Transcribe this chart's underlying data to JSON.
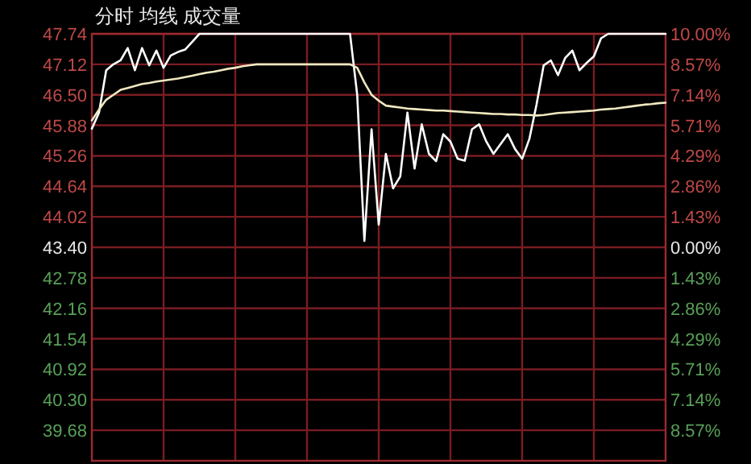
{
  "chart_data": {
    "type": "line",
    "title": "分时 均线 成交量",
    "categories": [
      null,
      null,
      null,
      null,
      null,
      null,
      null,
      null,
      null,
      null,
      null,
      null,
      null,
      null,
      null,
      null,
      null,
      null,
      null,
      null,
      null,
      null,
      null,
      null,
      null,
      null,
      null,
      null,
      null,
      null,
      null,
      null,
      null,
      null,
      null,
      null,
      null,
      null,
      null,
      null,
      null,
      null,
      null,
      null,
      null,
      null,
      null,
      null,
      null,
      null,
      null,
      null,
      null,
      null,
      null,
      null,
      null,
      null,
      null,
      null,
      null,
      null,
      null,
      null,
      null,
      null,
      null,
      null,
      null,
      null,
      null,
      null,
      null,
      null,
      null,
      null,
      null,
      null,
      null,
      null,
      null
    ],
    "grid": true,
    "ylim": [
      39.06,
      47.74
    ],
    "yticks": [
      47.74,
      47.12,
      {
        "value": 46.5,
        "label": "46.50"
      },
      45.88,
      45.26,
      44.64,
      44.02,
      {
        "value": 43.4,
        "label": "43.40"
      },
      42.78,
      42.16,
      41.54,
      40.92,
      {
        "value": 40.3,
        "label": "40.30"
      },
      39.68
    ],
    "y2lim": [
      -10,
      10
    ],
    "y2ticks": [
      {
        "value": 10,
        "label": "10.00%"
      },
      {
        "value": 8.57,
        "label": "8.57%"
      },
      {
        "value": 7.14,
        "label": "7.14%"
      },
      {
        "value": 5.71,
        "label": "5.71%"
      },
      {
        "value": 4.29,
        "label": "4.29%"
      },
      {
        "value": 2.86,
        "label": "2.86%"
      },
      {
        "value": 1.43,
        "label": "1.43%"
      },
      {
        "value": 0,
        "label": "0.00%"
      },
      {
        "value": -1.43,
        "label": "1.43%"
      },
      {
        "value": -2.86,
        "label": "2.86%"
      },
      {
        "value": -4.29,
        "label": "4.29%"
      },
      {
        "value": -5.71,
        "label": "5.71%"
      },
      {
        "value": -7.14,
        "label": "7.14%"
      },
      {
        "value": -8.57,
        "label": "8.57%"
      }
    ],
    "series": [
      {
        "color": "#ffffff",
        "values": [
          45.81,
          46.14,
          47.0,
          47.12,
          47.2,
          47.45,
          47.0,
          47.45,
          47.1,
          47.4,
          47.05,
          47.3,
          47.37,
          47.42,
          47.58,
          47.74,
          47.74,
          47.74,
          47.74,
          47.74,
          47.74,
          47.74,
          47.74,
          47.74,
          47.74,
          47.74,
          47.74,
          47.74,
          47.74,
          47.74,
          47.74,
          47.74,
          47.74,
          47.74,
          47.74,
          47.74,
          47.74,
          46.5,
          43.53,
          45.8,
          43.86,
          45.3,
          44.6,
          44.84,
          46.14,
          45.0,
          45.9,
          45.3,
          45.15,
          45.7,
          45.55,
          45.2,
          45.16,
          45.8,
          45.9,
          45.55,
          45.3,
          45.5,
          45.7,
          45.4,
          45.2,
          45.6,
          46.3,
          47.1,
          47.2,
          46.9,
          47.25,
          47.4,
          47.0,
          47.15,
          47.28,
          47.65,
          47.74,
          47.74,
          47.74,
          47.74,
          47.74,
          47.74,
          47.74,
          47.74,
          47.74
        ]
      },
      {
        "color": "#f0e8c0",
        "values": [
          45.98,
          46.2,
          46.4,
          46.5,
          46.6,
          46.64,
          46.68,
          46.72,
          46.74,
          46.77,
          46.79,
          46.81,
          46.83,
          46.86,
          46.89,
          46.92,
          46.95,
          46.97,
          47.0,
          47.03,
          47.05,
          47.08,
          47.1,
          47.12,
          47.12,
          47.12,
          47.12,
          47.12,
          47.12,
          47.12,
          47.12,
          47.12,
          47.12,
          47.12,
          47.12,
          47.12,
          47.12,
          47.05,
          46.75,
          46.5,
          46.38,
          46.28,
          46.26,
          46.24,
          46.22,
          46.21,
          46.2,
          46.19,
          46.18,
          46.18,
          46.17,
          46.16,
          46.15,
          46.14,
          46.13,
          46.12,
          46.11,
          46.11,
          46.1,
          46.1,
          46.09,
          46.09,
          46.08,
          46.09,
          46.11,
          46.13,
          46.14,
          46.15,
          46.16,
          46.17,
          46.18,
          46.2,
          46.21,
          46.22,
          46.24,
          46.26,
          46.28,
          46.3,
          46.31,
          46.33,
          46.34
        ]
      }
    ]
  }
}
